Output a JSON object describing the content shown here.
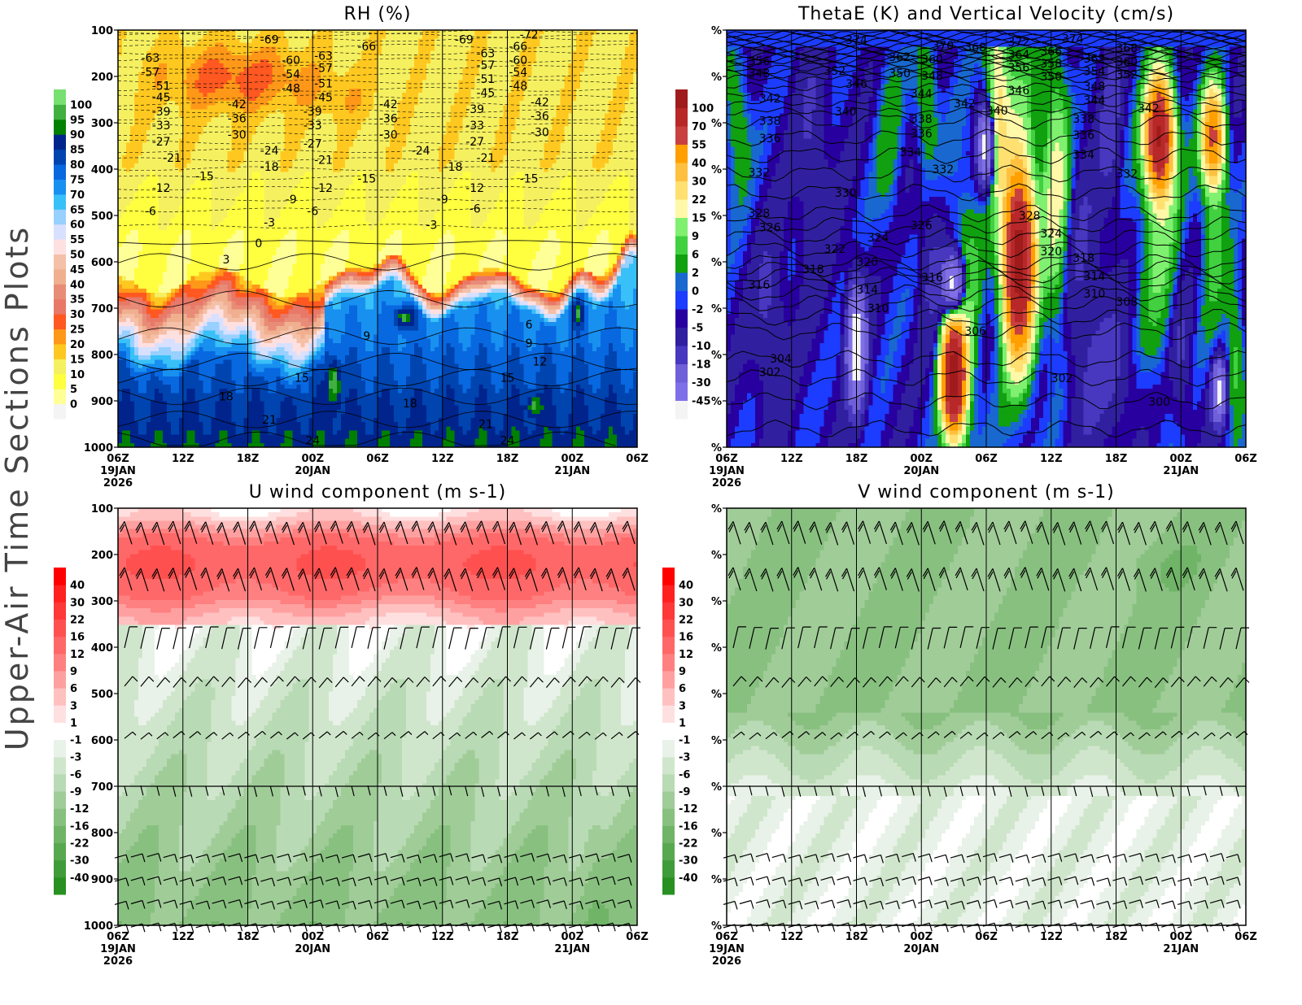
{
  "side_title": "Upper-Air Time Sections Plots",
  "time_axis": {
    "range": [
      "2026-01-19T06Z",
      "2026-01-21T06Z"
    ],
    "ticks": [
      {
        "time": "06Z",
        "date": "19JAN",
        "year": "2026"
      },
      {
        "time": "12Z"
      },
      {
        "time": "18Z"
      },
      {
        "time": "00Z",
        "date": "20JAN"
      },
      {
        "time": "06Z"
      },
      {
        "time": "12Z"
      },
      {
        "time": "18Z"
      },
      {
        "time": "00Z",
        "date": "21JAN"
      },
      {
        "time": "06Z"
      }
    ],
    "grid": "vertical lines every 6 hours"
  },
  "chart_data": [
    {
      "id": "rh",
      "type": "heatmap",
      "title": "RH (%)",
      "y_axis": {
        "range": [
          100,
          1000
        ],
        "inverted": true,
        "ticks": [
          "100",
          "200",
          "300",
          "400",
          "500",
          "600",
          "700",
          "800",
          "900",
          "1000"
        ]
      },
      "colorbar": {
        "placement": "left",
        "labels": [
          "0",
          "5",
          "10",
          "15",
          "20",
          "25",
          "30",
          "35",
          "40",
          "45",
          "50",
          "55",
          "60",
          "65",
          "70",
          "75",
          "80",
          "85",
          "90",
          "95",
          "100"
        ],
        "levels": [
          0,
          5,
          10,
          15,
          20,
          25,
          30,
          35,
          40,
          45,
          50,
          55,
          60,
          65,
          70,
          75,
          80,
          85,
          90,
          95,
          100
        ],
        "colors": [
          "#f4f4f4",
          "#ffff98",
          "#ffff40",
          "#f5f060",
          "#ffc820",
          "#ff9818",
          "#ff5820",
          "#e87868",
          "#e88c78",
          "#f0b090",
          "#f5c0a8",
          "#ffe0e0",
          "#d8e0ff",
          "#98d0ff",
          "#38c0f8",
          "#1890f0",
          "#0868e0",
          "#0044b0",
          "#00248c",
          "#008000",
          "#40b040",
          "#78e070"
        ]
      },
      "contours": "temperature, dashed below 0",
      "contour_labels": [
        [
          "-69",
          "2026-01-19T20Z",
          120
        ],
        [
          "-63",
          "2026-01-19T09Z",
          160
        ],
        [
          "-57",
          "2026-01-19T09Z",
          190
        ],
        [
          "-51",
          "2026-01-19T10Z",
          220
        ],
        [
          "-45",
          "2026-01-19T10Z",
          245
        ],
        [
          "-39",
          "2026-01-19T10Z",
          275
        ],
        [
          "-33",
          "2026-01-19T10Z",
          305
        ],
        [
          "-27",
          "2026-01-19T10Z",
          340
        ],
        [
          "-21",
          "2026-01-19T11Z",
          375
        ],
        [
          "-15",
          "2026-01-19T14Z",
          415
        ],
        [
          "-12",
          "2026-01-19T10Z",
          440
        ],
        [
          "-6",
          "2026-01-19T09Z",
          490
        ],
        [
          "-60",
          "2026-01-19T22Z",
          165
        ],
        [
          "-54",
          "2026-01-19T22Z",
          195
        ],
        [
          "-48",
          "2026-01-19T22Z",
          225
        ],
        [
          "-42",
          "2026-01-19T17Z",
          260
        ],
        [
          "-36",
          "2026-01-19T17Z",
          290
        ],
        [
          "-30",
          "2026-01-19T17Z",
          325
        ],
        [
          "-24",
          "2026-01-19T20Z",
          360
        ],
        [
          "-18",
          "2026-01-19T20Z",
          395
        ],
        [
          "-63",
          "2026-01-20T01Z",
          155
        ],
        [
          "-57",
          "2026-01-20T01Z",
          182
        ],
        [
          "-51",
          "2026-01-20T01Z",
          215
        ],
        [
          "-45",
          "2026-01-20T01Z",
          245
        ],
        [
          "-39",
          "2026-01-20T00Z",
          275
        ],
        [
          "-33",
          "2026-01-20T00Z",
          305
        ],
        [
          "-27",
          "2026-01-20T00Z",
          345
        ],
        [
          "-21",
          "2026-01-20T01Z",
          380
        ],
        [
          "-12",
          "2026-01-20T01Z",
          440
        ],
        [
          "-9",
          "2026-01-19T22Z",
          465
        ],
        [
          "-6",
          "2026-01-20T00Z",
          490
        ],
        [
          "-3",
          "2026-01-19T20Z",
          515
        ],
        [
          "0",
          "2026-01-19T19Z",
          560
        ],
        [
          "3",
          "2026-01-19T16Z",
          595
        ],
        [
          "-66",
          "2026-01-20T05Z",
          135
        ],
        [
          "-42",
          "2026-01-20T07Z",
          260
        ],
        [
          "-36",
          "2026-01-20T07Z",
          290
        ],
        [
          "-30",
          "2026-01-20T07Z",
          325
        ],
        [
          "-24",
          "2026-01-20T10Z",
          360
        ],
        [
          "-15",
          "2026-01-20T05Z",
          420
        ],
        [
          "-18",
          "2026-01-20T13Z",
          395
        ],
        [
          "-9",
          "2026-01-20T12Z",
          465
        ],
        [
          "-3",
          "2026-01-20T11Z",
          520
        ],
        [
          "-69",
          "2026-01-20T14Z",
          120
        ],
        [
          "-63",
          "2026-01-20T16Z",
          150
        ],
        [
          "-57",
          "2026-01-20T16Z",
          175
        ],
        [
          "-51",
          "2026-01-20T16Z",
          205
        ],
        [
          "-45",
          "2026-01-20T16Z",
          235
        ],
        [
          "-39",
          "2026-01-20T15Z",
          270
        ],
        [
          "-33",
          "2026-01-20T15Z",
          305
        ],
        [
          "-27",
          "2026-01-20T15Z",
          340
        ],
        [
          "-21",
          "2026-01-20T16Z",
          375
        ],
        [
          "-12",
          "2026-01-20T15Z",
          440
        ],
        [
          "-6",
          "2026-01-20T15Z",
          485
        ],
        [
          "-72",
          "2026-01-20T20Z",
          110
        ],
        [
          "-66",
          "2026-01-20T19Z",
          135
        ],
        [
          "-60",
          "2026-01-20T19Z",
          165
        ],
        [
          "-54",
          "2026-01-20T19Z",
          190
        ],
        [
          "-48",
          "2026-01-20T19Z",
          220
        ],
        [
          "-42",
          "2026-01-20T21Z",
          255
        ],
        [
          "-36",
          "2026-01-20T21Z",
          285
        ],
        [
          "-30",
          "2026-01-20T21Z",
          320
        ],
        [
          "-15",
          "2026-01-20T20Z",
          420
        ],
        [
          "6",
          "2026-01-20T20Z",
          735
        ],
        [
          "9",
          "2026-01-20T20Z",
          775
        ],
        [
          "12",
          "2026-01-20T21Z",
          815
        ],
        [
          "15",
          "2026-01-20T18Z",
          850
        ],
        [
          "9",
          "2026-01-20T05Z",
          760
        ],
        [
          "15",
          "2026-01-19T23Z",
          850
        ],
        [
          "18",
          "2026-01-19T16Z",
          890
        ],
        [
          "18",
          "2026-01-20T09Z",
          905
        ],
        [
          "21",
          "2026-01-19T20Z",
          940
        ],
        [
          "21",
          "2026-01-20T16Z",
          950
        ],
        [
          "24",
          "2026-01-20T00Z",
          985
        ],
        [
          "24",
          "2026-01-20T18Z",
          985
        ]
      ]
    },
    {
      "id": "thetae",
      "type": "heatmap",
      "title": "ThetaE (K) and Vertical Velocity (cm/s)",
      "y_axis": {
        "range": [
          100,
          1000
        ],
        "inverted": true,
        "ticks": [
          "%",
          "%",
          "%",
          "%",
          "%",
          "%",
          "%",
          "%",
          "%",
          "%"
        ]
      },
      "colorbar": {
        "placement": "left",
        "labels": [
          "-45",
          "-30",
          "-18",
          "-10",
          "-5",
          "-2",
          "0",
          "2",
          "6",
          "9",
          "15",
          "22",
          "30",
          "40",
          "55",
          "70",
          "100"
        ],
        "levels": [
          -45,
          -30,
          -18,
          -10,
          -5,
          -2,
          0,
          2,
          6,
          9,
          15,
          22,
          30,
          40,
          55,
          70,
          100
        ],
        "colors": [
          "#f4f4f4",
          "#8070e8",
          "#7060d8",
          "#4838c0",
          "#3020a0",
          "#2800a0",
          "#1c3cff",
          "#1868d0",
          "#10a010",
          "#40d040",
          "#80f070",
          "#fff8a8",
          "#ffe070",
          "#ffc040",
          "#ffa000",
          "#c84040",
          "#b82828",
          "#a01c1c"
        ]
      },
      "contours": "ThetaE (K), solid",
      "contour_labels": [
        [
          "374",
          "2026-01-19T18Z",
          121
        ],
        [
          "370",
          "2026-01-20T02Z",
          133
        ],
        [
          "368",
          "2026-01-20T05Z",
          137
        ],
        [
          "372",
          "2026-01-20T09Z",
          125
        ],
        [
          "374",
          "2026-01-20T14Z",
          118
        ],
        [
          "368",
          "2026-01-20T19Z",
          139
        ],
        [
          "356",
          "2026-01-19T09Z",
          167
        ],
        [
          "348",
          "2026-01-19T09Z",
          193
        ],
        [
          "352",
          "2026-01-19T16Z",
          188
        ],
        [
          "362",
          "2026-01-19T22Z",
          158
        ],
        [
          "360",
          "2026-01-20T01Z",
          163
        ],
        [
          "350",
          "2026-01-19T22Z",
          193
        ],
        [
          "348",
          "2026-01-20T01Z",
          198
        ],
        [
          "364",
          "2026-01-20T09Z",
          153
        ],
        [
          "366",
          "2026-01-20T12Z",
          146
        ],
        [
          "356",
          "2026-01-20T09Z",
          181
        ],
        [
          "358",
          "2026-01-20T12Z",
          172
        ],
        [
          "350",
          "2026-01-20T12Z",
          200
        ],
        [
          "362",
          "2026-01-20T16Z",
          161
        ],
        [
          "360",
          "2026-01-20T19Z",
          168
        ],
        [
          "354",
          "2026-01-20T16Z",
          189
        ],
        [
          "352",
          "2026-01-20T19Z",
          196
        ],
        [
          "346",
          "2026-01-19T18Z",
          216
        ],
        [
          "346",
          "2026-01-20T09Z",
          230
        ],
        [
          "348",
          "2026-01-20T16Z",
          221
        ],
        [
          "344",
          "2026-01-20T16Z",
          251
        ],
        [
          "342",
          "2026-01-19T10Z",
          247
        ],
        [
          "344",
          "2026-01-20T00Z",
          237
        ],
        [
          "342",
          "2026-01-20T04Z",
          258
        ],
        [
          "340",
          "2026-01-20T07Z",
          274
        ],
        [
          "340",
          "2026-01-19T17Z",
          275
        ],
        [
          "338",
          "2026-01-20T00Z",
          291
        ],
        [
          "336",
          "2026-01-20T00Z",
          323
        ],
        [
          "338",
          "2026-01-20T15Z",
          291
        ],
        [
          "336",
          "2026-01-20T15Z",
          326
        ],
        [
          "342",
          "2026-01-20T21Z",
          268
        ],
        [
          "338",
          "2026-01-19T10Z",
          296
        ],
        [
          "336",
          "2026-01-19T10Z",
          333
        ],
        [
          "334",
          "2026-01-19T23Z",
          363
        ],
        [
          "334",
          "2026-01-20T15Z",
          368
        ],
        [
          "332",
          "2026-01-20T02Z",
          400
        ],
        [
          "332",
          "2026-01-19T09Z",
          407
        ],
        [
          "332",
          "2026-01-20T19Z",
          410
        ],
        [
          "330",
          "2026-01-19T17Z",
          451
        ],
        [
          "328",
          "2026-01-20T10Z",
          500
        ],
        [
          "326",
          "2026-01-20T00Z",
          521
        ],
        [
          "328",
          "2026-01-19T09Z",
          495
        ],
        [
          "326",
          "2026-01-19T10Z",
          525
        ],
        [
          "324",
          "2026-01-19T20Z",
          547
        ],
        [
          "324",
          "2026-01-20T12Z",
          539
        ],
        [
          "322",
          "2026-01-19T16Z",
          572
        ],
        [
          "320",
          "2026-01-19T19Z",
          600
        ],
        [
          "320",
          "2026-01-20T12Z",
          577
        ],
        [
          "318",
          "2026-01-20T15Z",
          591
        ],
        [
          "318",
          "2026-01-19T14Z",
          616
        ],
        [
          "316",
          "2026-01-20T01Z",
          633
        ],
        [
          "316",
          "2026-01-19T09Z",
          649
        ],
        [
          "314",
          "2026-01-19T19Z",
          660
        ],
        [
          "314",
          "2026-01-20T16Z",
          631
        ],
        [
          "310",
          "2026-01-20T16Z",
          668
        ],
        [
          "310",
          "2026-01-19T20Z",
          700
        ],
        [
          "308",
          "2026-01-20T19Z",
          686
        ],
        [
          "306",
          "2026-01-20T05Z",
          749
        ],
        [
          "304",
          "2026-01-19T11Z",
          809
        ],
        [
          "302",
          "2026-01-19T10Z",
          838
        ],
        [
          "302",
          "2026-01-20T13Z",
          851
        ],
        [
          "300",
          "2026-01-20T22Z",
          902
        ]
      ]
    },
    {
      "id": "u",
      "type": "heatmap",
      "title": "U wind component (m s-1)",
      "y_axis": {
        "range": [
          100,
          1000
        ],
        "inverted": true,
        "ticks": [
          "100",
          "200",
          "300",
          "400",
          "500",
          "600",
          "700",
          "800",
          "900",
          "1000"
        ]
      },
      "colorbar": {
        "placement": "left",
        "labels": [
          "-40",
          "-30",
          "-22",
          "-16",
          "-12",
          "-9",
          "-6",
          "-3",
          "-1",
          "1",
          "3",
          "6",
          "9",
          "12",
          "16",
          "22",
          "30",
          "40"
        ],
        "levels": [
          -40,
          -30,
          -22,
          -16,
          -12,
          -9,
          -6,
          -3,
          -1,
          1,
          3,
          6,
          9,
          12,
          16,
          22,
          30,
          40
        ],
        "colors": [
          "#289020",
          "#409c38",
          "#58a850",
          "#70b468",
          "#88c080",
          "#a0cc98",
          "#b8dab4",
          "#d0e6cc",
          "#e8f2e8",
          "#ffffff",
          "#ffe0e0",
          "#ffc0c0",
          "#ffa0a0",
          "#ff8080",
          "#ff6868",
          "#ff5050",
          "#ff3838",
          "#ff2020",
          "#ff0000"
        ]
      },
      "overlay": "wind barbs",
      "barb_levels": [
        150,
        250,
        375,
        475,
        590,
        700,
        850,
        900,
        950,
        1000
      ]
    },
    {
      "id": "v",
      "type": "heatmap",
      "title": "V wind component (m s-1)",
      "y_axis": {
        "range": [
          100,
          1000
        ],
        "inverted": true,
        "ticks": [
          "%",
          "%",
          "%",
          "%",
          "%",
          "%",
          "%",
          "%",
          "%",
          "%"
        ]
      },
      "colorbar": {
        "placement": "left",
        "labels": [
          "-40",
          "-30",
          "-22",
          "-16",
          "-12",
          "-9",
          "-6",
          "-3",
          "-1",
          "1",
          "3",
          "6",
          "9",
          "12",
          "16",
          "22",
          "30",
          "40"
        ],
        "levels": [
          -40,
          -30,
          -22,
          -16,
          -12,
          -9,
          -6,
          -3,
          -1,
          1,
          3,
          6,
          9,
          12,
          16,
          22,
          30,
          40
        ],
        "colors": [
          "#289020",
          "#409c38",
          "#58a850",
          "#70b468",
          "#88c080",
          "#a0cc98",
          "#b8dab4",
          "#d0e6cc",
          "#e8f2e8",
          "#ffffff",
          "#ffe0e0",
          "#ffc0c0",
          "#ffa0a0",
          "#ff8080",
          "#ff6868",
          "#ff5050",
          "#ff3838",
          "#ff2020",
          "#ff0000"
        ]
      },
      "overlay": "wind barbs",
      "barb_levels": [
        150,
        250,
        375,
        475,
        590,
        700,
        850,
        900,
        950,
        1000
      ]
    }
  ]
}
